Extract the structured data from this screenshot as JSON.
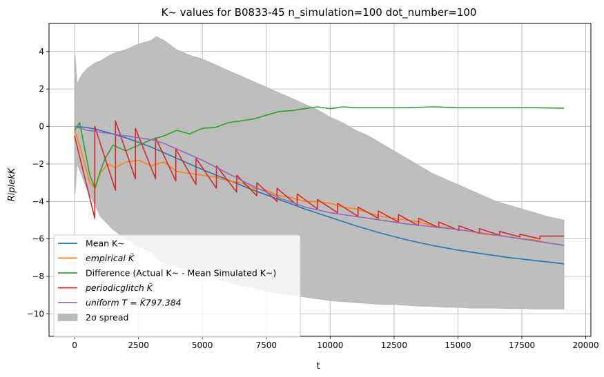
{
  "chart_data": {
    "type": "line",
    "title": "K~ values for B0833-45 n_simulation=100 dot_number=100",
    "xlabel": "t",
    "ylabel": "RiplekK",
    "xlim": [
      -1000,
      20200
    ],
    "ylim": [
      -11.2,
      5.5
    ],
    "xticks": [
      0,
      2500,
      5000,
      7500,
      10000,
      12500,
      15000,
      17500,
      20000
    ],
    "xtick_labels": [
      "0",
      "2500",
      "5000",
      "7500",
      "10000",
      "12500",
      "15000",
      "17500",
      "20000"
    ],
    "yticks": [
      4,
      2,
      0,
      -2,
      -4,
      -6,
      -8,
      -10
    ],
    "ytick_labels": [
      "4",
      "2",
      "0",
      "−2",
      "−4",
      "−6",
      "−8",
      "−10"
    ],
    "grid": true,
    "legend_position": "lower-left",
    "series": [
      {
        "name": "Mean K~",
        "color": "#1f77b4",
        "x": [
          0,
          500,
          1000,
          2000,
          3000,
          4000,
          5000,
          6000,
          7000,
          8000,
          9000,
          10000,
          11000,
          12000,
          13000,
          14000,
          15000,
          16000,
          17000,
          18000,
          19150
        ],
        "y": [
          0.0,
          -0.05,
          -0.2,
          -0.6,
          -1.1,
          -1.7,
          -2.3,
          -2.85,
          -3.4,
          -3.9,
          -4.4,
          -4.85,
          -5.3,
          -5.7,
          -6.05,
          -6.35,
          -6.6,
          -6.8,
          -7.0,
          -7.15,
          -7.33
        ]
      },
      {
        "name": "empirical K̃",
        "color": "#ff7f0e",
        "x": [
          0,
          200,
          400,
          600,
          800,
          1000,
          1300,
          1600,
          2000,
          2500,
          3000,
          3500,
          4000,
          4500,
          5000,
          5500,
          6000,
          6500,
          7000,
          7500,
          8000,
          8500,
          9000,
          9500,
          10000,
          10500,
          11000,
          11500,
          12000,
          12500,
          13000,
          13500,
          14000,
          14500,
          15000,
          15500,
          16000,
          16500,
          17000,
          17500,
          18000,
          18500,
          19150
        ],
        "y": [
          -0.2,
          -1.0,
          -2.0,
          -3.0,
          -3.3,
          -2.5,
          -2.0,
          -2.2,
          -1.9,
          -1.8,
          -2.1,
          -1.9,
          -2.4,
          -2.5,
          -2.6,
          -2.7,
          -2.9,
          -3.0,
          -3.3,
          -3.4,
          -3.7,
          -3.8,
          -4.0,
          -4.0,
          -4.1,
          -4.3,
          -4.4,
          -4.6,
          -4.8,
          -4.9,
          -5.0,
          -5.1,
          -5.3,
          -5.4,
          -5.5,
          -5.6,
          -5.75,
          -5.8,
          -5.9,
          -6.0,
          -6.05,
          -6.2,
          -6.35
        ]
      },
      {
        "name": "Difference (Actual K~ - Mean Simulated K~)",
        "color": "#2ca02c",
        "x": [
          0,
          200,
          400,
          600,
          800,
          1000,
          1200,
          1500,
          2000,
          2500,
          3000,
          3500,
          4000,
          4500,
          5000,
          5500,
          6000,
          6500,
          7000,
          7500,
          8000,
          8500,
          9000,
          9500,
          10000,
          10500,
          11000,
          12000,
          13000,
          14000,
          15000,
          16000,
          17000,
          18000,
          19150
        ],
        "y": [
          -0.2,
          0.2,
          -1.2,
          -2.6,
          -3.3,
          -2.4,
          -1.7,
          -1.0,
          -1.3,
          -1.0,
          -0.7,
          -0.5,
          -0.2,
          -0.4,
          -0.1,
          -0.05,
          0.2,
          0.3,
          0.4,
          0.6,
          0.8,
          0.85,
          0.95,
          1.05,
          0.95,
          1.05,
          1.0,
          1.0,
          1.0,
          1.05,
          1.0,
          1.0,
          1.0,
          1.0,
          0.98
        ]
      },
      {
        "name": "periodicglitch K̃",
        "color": "#d62728",
        "x": [
          0,
          790,
          791,
          1600,
          1601,
          2380,
          2381,
          3170,
          3171,
          3960,
          3961,
          4750,
          4751,
          5550,
          5551,
          6340,
          6341,
          7130,
          7131,
          7920,
          7921,
          8710,
          8711,
          9500,
          9501,
          10290,
          10291,
          11090,
          11091,
          11880,
          11881,
          12670,
          12671,
          13460,
          13461,
          14250,
          14251,
          15040,
          15041,
          15840,
          15841,
          16630,
          16631,
          17420,
          17421,
          18210,
          18211,
          19150
        ],
        "y": [
          -0.5,
          -4.9,
          0.0,
          -3.4,
          0.3,
          -2.8,
          -0.1,
          -2.8,
          -0.6,
          -2.9,
          -1.2,
          -3.1,
          -1.7,
          -3.3,
          -2.1,
          -3.5,
          -2.6,
          -3.7,
          -3.0,
          -4.0,
          -3.3,
          -4.2,
          -3.6,
          -4.4,
          -3.9,
          -4.6,
          -4.1,
          -4.8,
          -4.3,
          -4.9,
          -4.5,
          -5.1,
          -4.7,
          -5.3,
          -4.9,
          -5.4,
          -5.1,
          -5.55,
          -5.3,
          -5.7,
          -5.45,
          -5.8,
          -5.6,
          -5.9,
          -5.75,
          -6.0,
          -5.85,
          -5.85
        ]
      },
      {
        "name": "uniform T = K̃797.384",
        "color": "#9467bd",
        "x": [
          0,
          500,
          1000,
          1500,
          2000,
          2500,
          3000,
          3500,
          4000,
          5000,
          6000,
          7000,
          8000,
          9000,
          10000,
          11000,
          12000,
          13000,
          14000,
          15000,
          16000,
          17000,
          18000,
          19150
        ],
        "y": [
          0.0,
          -0.2,
          -0.3,
          -0.4,
          -0.5,
          -0.6,
          -0.7,
          -0.9,
          -1.2,
          -1.8,
          -2.5,
          -3.2,
          -3.8,
          -4.3,
          -4.6,
          -4.8,
          -5.0,
          -5.2,
          -5.35,
          -5.5,
          -5.7,
          -5.9,
          -6.1,
          -6.35
        ]
      }
    ],
    "band": {
      "name": "2σ spread",
      "color": "#bbbbbb",
      "x": [
        0,
        20,
        100,
        300,
        500,
        800,
        1000,
        1500,
        2000,
        2500,
        3000,
        3200,
        3500,
        4000,
        4500,
        5000,
        5500,
        6000,
        6500,
        7000,
        7500,
        8000,
        8500,
        9000,
        9500,
        10000,
        10500,
        11000,
        11500,
        12000,
        12500,
        13000,
        13500,
        14000,
        14500,
        15000,
        15500,
        16000,
        16500,
        17000,
        17500,
        18000,
        18500,
        19150
      ],
      "upper": [
        -1.0,
        3.8,
        2.3,
        2.8,
        3.1,
        3.4,
        3.5,
        3.9,
        4.1,
        4.4,
        4.6,
        4.8,
        4.6,
        4.1,
        3.8,
        3.6,
        3.3,
        3.0,
        2.7,
        2.4,
        2.1,
        1.8,
        1.5,
        1.2,
        0.9,
        0.5,
        0.2,
        -0.2,
        -0.5,
        -0.9,
        -1.3,
        -1.7,
        -2.1,
        -2.5,
        -2.8,
        -3.1,
        -3.4,
        -3.7,
        -4.0,
        -4.2,
        -4.4,
        -4.6,
        -4.8,
        -5.0
      ],
      "lower": [
        -1.0,
        -3.6,
        -2.0,
        -2.7,
        -3.4,
        -4.2,
        -4.8,
        -5.5,
        -6.0,
        -6.4,
        -6.7,
        -7.0,
        -7.3,
        -7.5,
        -7.7,
        -7.9,
        -8.1,
        -8.3,
        -8.5,
        -8.6,
        -8.8,
        -8.9,
        -9.0,
        -9.1,
        -9.2,
        -9.3,
        -9.35,
        -9.4,
        -9.45,
        -9.5,
        -9.5,
        -9.55,
        -9.6,
        -9.6,
        -9.65,
        -9.65,
        -9.7,
        -9.7,
        -9.7,
        -9.72,
        -9.72,
        -9.75,
        -9.75,
        -9.75
      ]
    }
  },
  "legend": [
    {
      "label": "Mean K~",
      "color": "#1f77b4",
      "kind": "line",
      "italic": false
    },
    {
      "label": "empirical K̃",
      "color": "#ff7f0e",
      "kind": "line",
      "italic": true
    },
    {
      "label": "Difference (Actual K~ - Mean Simulated K~)",
      "color": "#2ca02c",
      "kind": "line",
      "italic": false
    },
    {
      "label": "periodicglitch K̃",
      "color": "#d62728",
      "kind": "line",
      "italic": true
    },
    {
      "label": "uniform T = K̃797.384",
      "color": "#9467bd",
      "kind": "line",
      "italic": true
    },
    {
      "label": "2σ spread",
      "color": "#bbbbbb",
      "kind": "patch",
      "italic": false
    }
  ]
}
